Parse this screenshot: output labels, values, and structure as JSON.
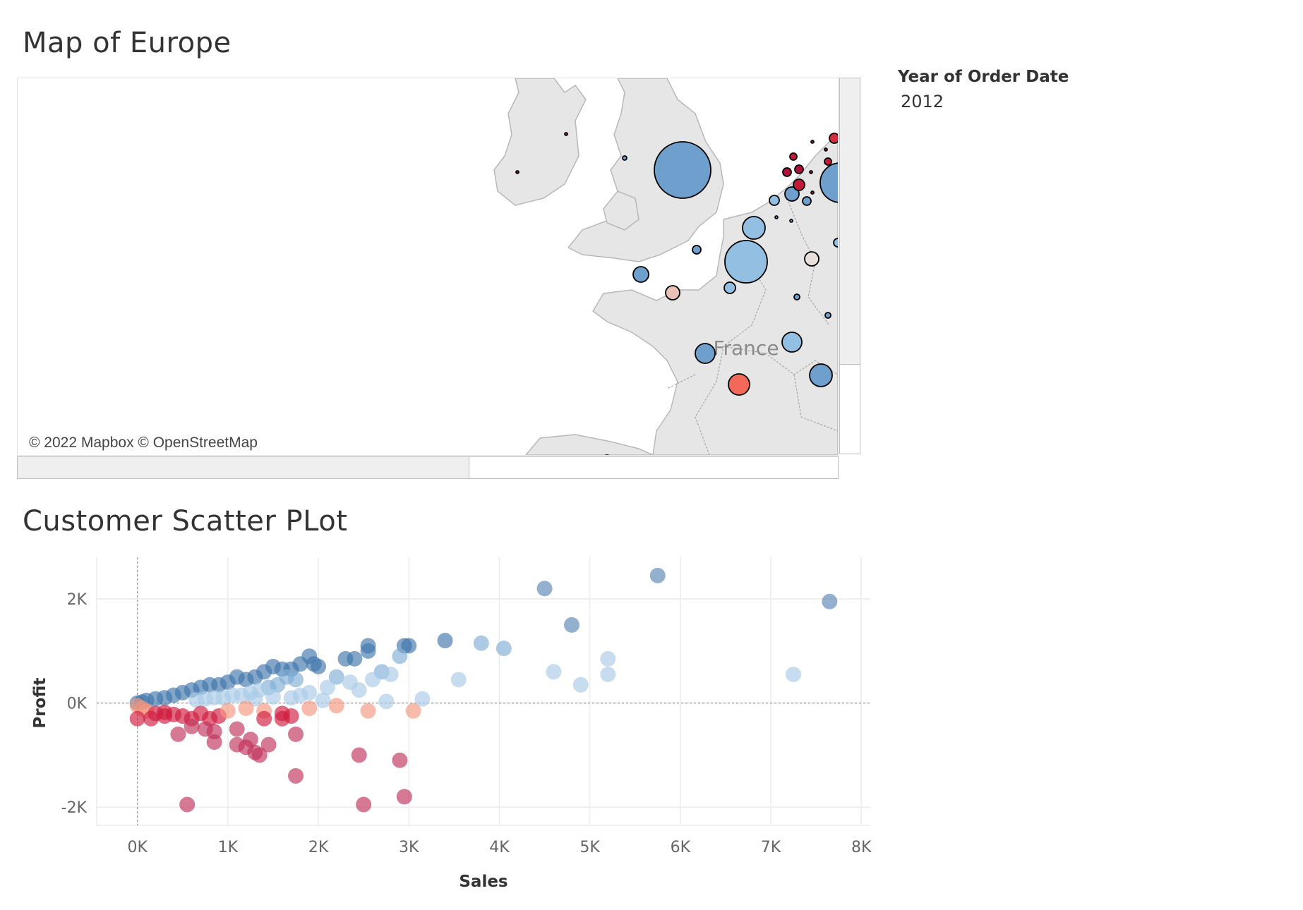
{
  "map": {
    "title": "Map of Europe",
    "attribution": "© 2022 Mapbox © OpenStreetMap",
    "country_label": "France",
    "colors": {
      "land": "#e6e6e6",
      "border": "#b0b0b0",
      "outline": "#000000"
    }
  },
  "legend": {
    "title": "Year of Order Date",
    "value": "2012"
  },
  "scatter": {
    "title": "Customer Scatter PLot",
    "colors": {
      "positive": "#3a6fa8",
      "negative": "#c0163a",
      "zero_line": "#9a9a9a"
    }
  },
  "chart_data": {
    "type": "scatter",
    "xlabel": "Sales",
    "ylabel": "Profit",
    "xlim": [
      -450,
      8100
    ],
    "ylim": [
      -2350,
      2800
    ],
    "x_ticks": [
      0,
      1000,
      2000,
      3000,
      4000,
      5000,
      6000,
      7000,
      8000
    ],
    "x_tick_labels": [
      "0K",
      "1K",
      "2K",
      "3K",
      "4K",
      "5K",
      "6K",
      "7K",
      "8K"
    ],
    "y_ticks": [
      -2000,
      0,
      2000
    ],
    "y_tick_labels": [
      "-2K",
      "0K",
      "2K"
    ],
    "grid": true,
    "points": [
      [
        4500,
        2200
      ],
      [
        5750,
        2450
      ],
      [
        7650,
        1950
      ],
      [
        4800,
        1500
      ],
      [
        3400,
        1200
      ],
      [
        3800,
        1150
      ],
      [
        4050,
        1050
      ],
      [
        2950,
        1100
      ],
      [
        3000,
        1100
      ],
      [
        2550,
        1100
      ],
      [
        2550,
        1000
      ],
      [
        2300,
        850
      ],
      [
        2400,
        850
      ],
      [
        2700,
        600
      ],
      [
        2900,
        900
      ],
      [
        1900,
        900
      ],
      [
        1950,
        750
      ],
      [
        2000,
        700
      ],
      [
        1800,
        750
      ],
      [
        1700,
        650
      ],
      [
        1600,
        650
      ],
      [
        1500,
        700
      ],
      [
        1400,
        600
      ],
      [
        1300,
        500
      ],
      [
        1200,
        450
      ],
      [
        1100,
        500
      ],
      [
        1000,
        400
      ],
      [
        900,
        350
      ],
      [
        800,
        350
      ],
      [
        700,
        300
      ],
      [
        600,
        250
      ],
      [
        500,
        200
      ],
      [
        400,
        150
      ],
      [
        300,
        100
      ],
      [
        200,
        80
      ],
      [
        100,
        50
      ],
      [
        50,
        20
      ],
      [
        0,
        0
      ],
      [
        1650,
        500
      ],
      [
        1750,
        450
      ],
      [
        1550,
        350
      ],
      [
        1450,
        300
      ],
      [
        1350,
        250
      ],
      [
        1250,
        200
      ],
      [
        1150,
        150
      ],
      [
        1050,
        150
      ],
      [
        950,
        100
      ],
      [
        850,
        100
      ],
      [
        750,
        80
      ],
      [
        650,
        60
      ],
      [
        2200,
        500
      ],
      [
        2100,
        300
      ],
      [
        1900,
        200
      ],
      [
        1800,
        150
      ],
      [
        2450,
        250
      ],
      [
        2350,
        400
      ],
      [
        2800,
        550
      ],
      [
        2600,
        450
      ],
      [
        3550,
        450
      ],
      [
        4600,
        600
      ],
      [
        4900,
        350
      ],
      [
        5200,
        850
      ],
      [
        5200,
        550
      ],
      [
        7250,
        550
      ],
      [
        3150,
        80
      ],
      [
        2750,
        30
      ],
      [
        2050,
        50
      ],
      [
        1700,
        100
      ],
      [
        1500,
        120
      ],
      [
        1300,
        80
      ],
      [
        0,
        -50
      ],
      [
        50,
        -100
      ],
      [
        100,
        -150
      ],
      [
        200,
        -200
      ],
      [
        300,
        -180
      ],
      [
        400,
        -220
      ],
      [
        500,
        -250
      ],
      [
        600,
        -300
      ],
      [
        700,
        -200
      ],
      [
        800,
        -300
      ],
      [
        900,
        -250
      ],
      [
        1000,
        -150
      ],
      [
        1200,
        -100
      ],
      [
        1400,
        -150
      ],
      [
        1600,
        -200
      ],
      [
        1700,
        -250
      ],
      [
        1900,
        -100
      ],
      [
        2200,
        -50
      ],
      [
        2550,
        -150
      ],
      [
        3050,
        -150
      ],
      [
        1400,
        -300
      ],
      [
        1600,
        -300
      ],
      [
        0,
        -300
      ],
      [
        150,
        -300
      ],
      [
        300,
        -250
      ],
      [
        450,
        -600
      ],
      [
        600,
        -450
      ],
      [
        850,
        -750
      ],
      [
        850,
        -550
      ],
      [
        750,
        -500
      ],
      [
        1100,
        -500
      ],
      [
        1100,
        -800
      ],
      [
        1200,
        -850
      ],
      [
        1250,
        -700
      ],
      [
        1300,
        -950
      ],
      [
        1350,
        -1000
      ],
      [
        1450,
        -800
      ],
      [
        1750,
        -600
      ],
      [
        1750,
        -1400
      ],
      [
        2450,
        -1000
      ],
      [
        2900,
        -1100
      ],
      [
        550,
        -1950
      ],
      [
        2500,
        -1950
      ],
      [
        2950,
        -1800
      ]
    ]
  }
}
